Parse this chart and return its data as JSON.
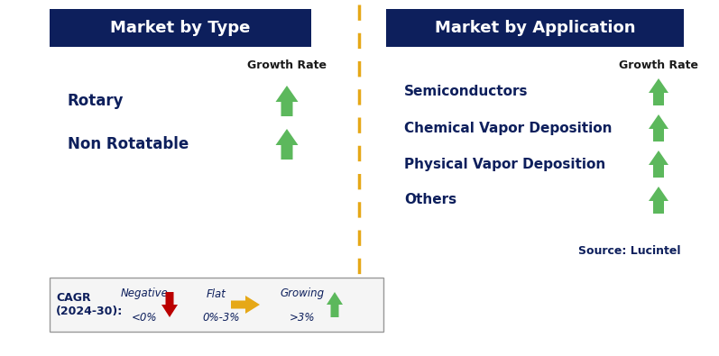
{
  "title_left": "Market by Type",
  "title_right": "Market by Application",
  "header_bg_color": "#0d1f5c",
  "header_text_color": "#ffffff",
  "item_text_color": "#0d1f5c",
  "growth_rate_color": "#1a1a1a",
  "items_left": [
    "Rotary",
    "Non Rotatable"
  ],
  "items_right": [
    "Semiconductors",
    "Chemical Vapor Deposition",
    "Physical Vapor Deposition",
    "Others"
  ],
  "green_arrow_color": "#5cb85c",
  "red_arrow_color": "#bb0000",
  "orange_arrow_color": "#e6a817",
  "source_text": "Source: Lucintel",
  "dashed_line_color": "#e6a817",
  "bg_color": "#ffffff",
  "fig_width": 7.97,
  "fig_height": 3.95,
  "dpi": 100
}
